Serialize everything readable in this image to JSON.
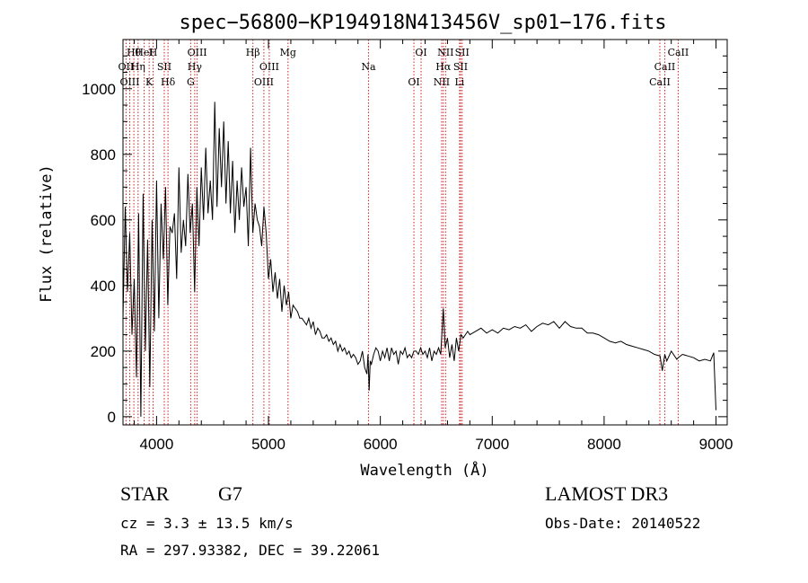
{
  "chart_data": {
    "type": "line",
    "title": "spec−56800−KP194918N413456V_sp01−176.fits",
    "xlabel": "Wavelength (Å)",
    "ylabel": "Flux (relative)",
    "xlim": [
      3700,
      9100
    ],
    "ylim": [
      -25,
      1150
    ],
    "xticks": [
      4000,
      5000,
      6000,
      7000,
      8000,
      9000
    ],
    "yticks": [
      0,
      200,
      400,
      600,
      800,
      1000
    ],
    "series": [
      {
        "name": "flux",
        "x": [
          3700,
          3720,
          3740,
          3760,
          3780,
          3800,
          3820,
          3840,
          3860,
          3880,
          3900,
          3920,
          3940,
          3960,
          3980,
          4000,
          4020,
          4040,
          4060,
          4080,
          4100,
          4120,
          4140,
          4160,
          4180,
          4200,
          4220,
          4240,
          4260,
          4280,
          4300,
          4320,
          4340,
          4360,
          4380,
          4400,
          4420,
          4440,
          4460,
          4480,
          4500,
          4520,
          4540,
          4560,
          4580,
          4600,
          4620,
          4640,
          4660,
          4680,
          4700,
          4720,
          4740,
          4760,
          4780,
          4800,
          4820,
          4840,
          4860,
          4880,
          4900,
          4920,
          4940,
          4960,
          4980,
          5000,
          5020,
          5040,
          5060,
          5080,
          5100,
          5120,
          5140,
          5160,
          5180,
          5200,
          5220,
          5240,
          5260,
          5280,
          5300,
          5320,
          5340,
          5360,
          5380,
          5400,
          5420,
          5440,
          5460,
          5480,
          5500,
          5520,
          5540,
          5560,
          5580,
          5600,
          5620,
          5640,
          5660,
          5680,
          5700,
          5720,
          5740,
          5760,
          5780,
          5800,
          5820,
          5840,
          5860,
          5880,
          5890,
          5900,
          5910,
          5920,
          5940,
          5960,
          5980,
          6000,
          6020,
          6040,
          6060,
          6080,
          6100,
          6120,
          6140,
          6160,
          6180,
          6200,
          6220,
          6240,
          6260,
          6280,
          6300,
          6320,
          6340,
          6360,
          6380,
          6400,
          6420,
          6440,
          6460,
          6480,
          6500,
          6520,
          6540,
          6563,
          6580,
          6600,
          6620,
          6640,
          6660,
          6680,
          6700,
          6720,
          6740,
          6760,
          6780,
          6800,
          6850,
          6900,
          6950,
          7000,
          7050,
          7100,
          7150,
          7200,
          7250,
          7300,
          7350,
          7400,
          7450,
          7500,
          7550,
          7600,
          7650,
          7700,
          7750,
          7800,
          7850,
          7900,
          7950,
          8000,
          8050,
          8100,
          8150,
          8200,
          8250,
          8300,
          8350,
          8400,
          8450,
          8500,
          8520,
          8542,
          8560,
          8600,
          8650,
          8662,
          8700,
          8750,
          8800,
          8850,
          8900,
          8950,
          8980,
          9000
        ],
        "values": [
          300,
          640,
          380,
          560,
          250,
          420,
          120,
          620,
          0,
          680,
          200,
          540,
          90,
          600,
          260,
          720,
          300,
          650,
          480,
          700,
          340,
          580,
          560,
          620,
          420,
          760,
          500,
          600,
          520,
          740,
          560,
          650,
          380,
          700,
          520,
          760,
          600,
          820,
          620,
          720,
          600,
          960,
          640,
          880,
          700,
          900,
          650,
          840,
          620,
          780,
          560,
          720,
          600,
          760,
          640,
          700,
          520,
          820,
          560,
          650,
          600,
          580,
          520,
          640,
          560,
          420,
          480,
          380,
          440,
          360,
          420,
          320,
          400,
          340,
          380,
          300,
          340,
          330,
          320,
          300,
          300,
          290,
          280,
          300,
          270,
          290,
          250,
          270,
          260,
          240,
          240,
          250,
          230,
          240,
          220,
          230,
          200,
          220,
          200,
          210,
          190,
          200,
          180,
          190,
          180,
          160,
          170,
          200,
          150,
          130,
          190,
          80,
          170,
          160,
          190,
          210,
          200,
          170,
          200,
          180,
          210,
          170,
          210,
          190,
          200,
          160,
          200,
          190,
          210,
          180,
          190,
          180,
          200,
          200,
          190,
          210,
          190,
          200,
          180,
          210,
          170,
          200,
          190,
          210,
          190,
          330,
          210,
          240,
          180,
          220,
          170,
          240,
          200,
          250,
          240,
          250,
          260,
          250,
          260,
          270,
          255,
          265,
          255,
          270,
          265,
          275,
          270,
          280,
          260,
          275,
          285,
          280,
          290,
          270,
          290,
          275,
          270,
          270,
          255,
          255,
          250,
          240,
          230,
          225,
          230,
          220,
          215,
          210,
          205,
          200,
          190,
          185,
          140,
          190,
          170,
          200,
          175,
          180,
          190,
          185,
          180,
          170,
          175,
          170,
          195,
          20
        ]
      }
    ],
    "annotations": [
      {
        "label": "Hθ",
        "x": 3797
      },
      {
        "label": "OII",
        "x": 3727
      },
      {
        "label": "OIII",
        "x": 3760
      },
      {
        "label": "HeI",
        "x": 3889
      },
      {
        "label": "Hη",
        "x": 3835
      },
      {
        "label": "K",
        "x": 3934
      },
      {
        "label": "H",
        "x": 3969
      },
      {
        "label": "SII",
        "x": 4069
      },
      {
        "label": "Hδ",
        "x": 4102
      },
      {
        "label": "OIII",
        "x": 4363
      },
      {
        "label": "Hγ",
        "x": 4341
      },
      {
        "label": "G",
        "x": 4305
      },
      {
        "label": "Hβ",
        "x": 4861
      },
      {
        "label": "OIII",
        "x": 5007
      },
      {
        "label": "OIII",
        "x": 4959
      },
      {
        "label": "Mg",
        "x": 5175
      },
      {
        "label": "Na",
        "x": 5894
      },
      {
        "label": "OI",
        "x": 6300
      },
      {
        "label": "OI",
        "x": 6364
      },
      {
        "label": "Hα",
        "x": 6563
      },
      {
        "label": "NII",
        "x": 6548
      },
      {
        "label": "NII",
        "x": 6583
      },
      {
        "label": "SII",
        "x": 6717
      },
      {
        "label": "Li",
        "x": 6708
      },
      {
        "label": "SII",
        "x": 6731
      },
      {
        "label": "CaII",
        "x": 8542
      },
      {
        "label": "CaII",
        "x": 8498
      },
      {
        "label": "CaII",
        "x": 8662
      }
    ]
  },
  "info": {
    "object_class": "STAR",
    "subclass": "G7",
    "survey": "LAMOST DR3",
    "cz": "cz = 3.3 ± 13.5 km/s",
    "obs_date": "Obs-Date: 20140522",
    "coords": "RA = 297.93382, DEC =  39.22061"
  },
  "colors": {
    "axis": "#000000",
    "spectrum": "#000000",
    "line_markers": "#cc2222"
  }
}
